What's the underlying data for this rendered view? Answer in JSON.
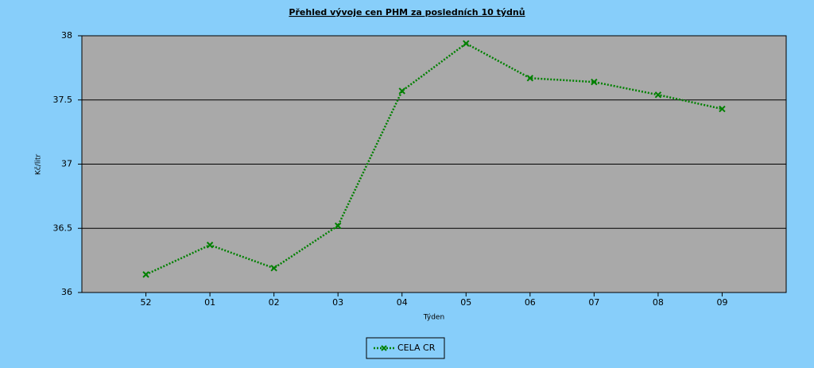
{
  "chart_data": {
    "type": "line",
    "title": "Přehled vývoje cen PHM za posledních 10 týdnů",
    "x_label": "Týden",
    "y_label": "Kč/litr",
    "categories": [
      "52",
      "01",
      "02",
      "03",
      "04",
      "05",
      "06",
      "07",
      "08",
      "09"
    ],
    "series": [
      {
        "name": "CELA CR",
        "color": "#008000",
        "values": [
          36.14,
          36.37,
          36.19,
          36.52,
          37.57,
          37.94,
          37.67,
          37.64,
          37.54,
          37.43
        ]
      }
    ],
    "ylim": [
      36,
      38
    ],
    "yticks": [
      36,
      36.5,
      37,
      37.5,
      38
    ],
    "grid": true,
    "legend": "bottom"
  }
}
